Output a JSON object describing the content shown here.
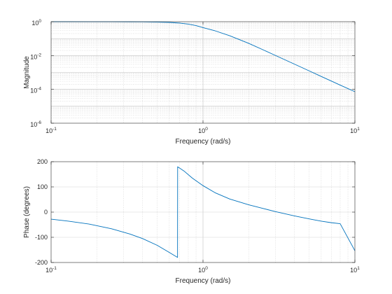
{
  "chart_data": [
    {
      "type": "line",
      "panel": "magnitude",
      "xscale": "log",
      "yscale": "log",
      "xlabel": "Frequency (rad/s)",
      "ylabel": "Magnitude",
      "xlim": [
        0.1,
        10
      ],
      "ylim": [
        1e-06,
        1
      ],
      "x_ticks": [
        {
          "base": "10",
          "exp": "-1"
        },
        {
          "base": "10",
          "exp": "0"
        },
        {
          "base": "10",
          "exp": "1"
        }
      ],
      "y_ticks": [
        {
          "base": "10",
          "exp": "-6"
        },
        {
          "base": "10",
          "exp": "-4"
        },
        {
          "base": "10",
          "exp": "-2"
        },
        {
          "base": "10",
          "exp": "0"
        }
      ],
      "grid": "major and minor, dotted",
      "color": "#0072bd",
      "series": [
        {
          "x": [
            0.1,
            0.13,
            0.18,
            0.25,
            0.33,
            0.4,
            0.5,
            0.6,
            0.7,
            0.8,
            0.9,
            1.0,
            1.2,
            1.5,
            2.0,
            2.5,
            3.0,
            4.0,
            5.0,
            6.0,
            7.0,
            8.0,
            10.0
          ],
          "y": [
            0.9995,
            0.999,
            0.998,
            0.994,
            0.989,
            0.98,
            0.95,
            0.91,
            0.83,
            0.72,
            0.59,
            0.447,
            0.29,
            0.148,
            0.0524,
            0.0213,
            0.0101,
            0.0031,
            0.00124,
            0.000583,
            0.000309,
            0.000179,
            7.27e-05
          ]
        }
      ]
    },
    {
      "type": "line",
      "panel": "phase",
      "xscale": "log",
      "yscale": "linear",
      "xlabel": "Frequency (rad/s)",
      "ylabel": "Phase (degrees)",
      "xlim": [
        0.1,
        10
      ],
      "ylim": [
        -200,
        200
      ],
      "x_ticks": [
        {
          "base": "10",
          "exp": "-1"
        },
        {
          "base": "10",
          "exp": "0"
        },
        {
          "base": "10",
          "exp": "1"
        }
      ],
      "y_ticks": [
        "-200",
        "-100",
        "0",
        "100",
        "200"
      ],
      "y_tick_values": [
        -200,
        -100,
        0,
        100,
        200
      ],
      "grid": "x major and minor dotted, y major",
      "color": "#0072bd",
      "series": [
        {
          "x": [
            0.1,
            0.13,
            0.18,
            0.25,
            0.33,
            0.4,
            0.5,
            0.6,
            0.68,
            0.681,
            0.75,
            0.85,
            1.0,
            1.2,
            1.5,
            2.0,
            2.5,
            3.0,
            4.0,
            5.0,
            6.0,
            7.0,
            8.0,
            10.0
          ],
          "y": [
            -28,
            -36,
            -48,
            -66,
            -87,
            -105,
            -132,
            -160,
            -180,
            180,
            163,
            135,
            105,
            77,
            52,
            29,
            14,
            2,
            -15,
            -27,
            -36,
            -42,
            -46,
            -153.4
          ]
        }
      ]
    }
  ]
}
